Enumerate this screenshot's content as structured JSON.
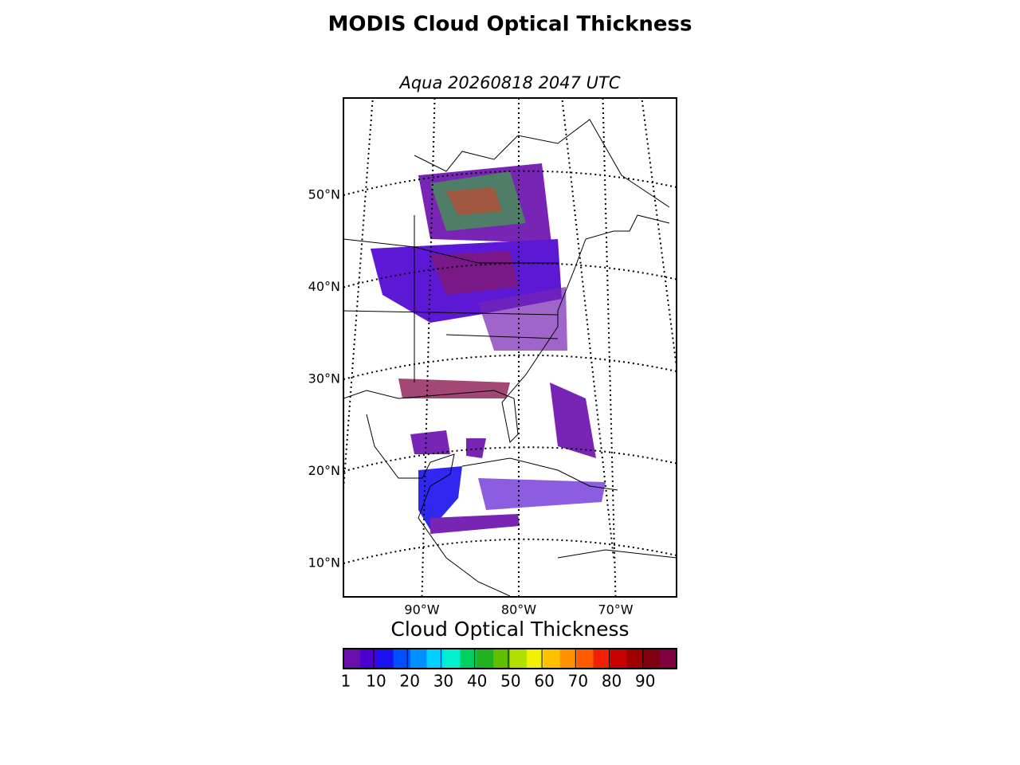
{
  "chart_data": {
    "type": "map",
    "title": "MODIS Cloud Optical Thickness",
    "subtitle": "Aqua 20260818 2047 UTC",
    "yticks": [
      {
        "value": 50,
        "label": "50°N"
      },
      {
        "value": 40,
        "label": "40°N"
      },
      {
        "value": 30,
        "label": "30°N"
      },
      {
        "value": 20,
        "label": "20°N"
      },
      {
        "value": 10,
        "label": "10°N"
      }
    ],
    "xticks": [
      {
        "value": -90,
        "label": "90°W"
      },
      {
        "value": -80,
        "label": "80°W"
      },
      {
        "value": -70,
        "label": "70°W"
      }
    ],
    "colorbar": {
      "label": "Cloud Optical Thickness",
      "lim": [
        1,
        100
      ],
      "ticks": [
        1,
        10,
        20,
        30,
        40,
        50,
        60,
        70,
        80,
        90
      ],
      "colors": [
        "#6a0dad",
        "#4b00d0",
        "#1a10f0",
        "#0050ff",
        "#0090ff",
        "#00d0ff",
        "#00f0d0",
        "#00d060",
        "#20b020",
        "#60c000",
        "#b0e000",
        "#f0f000",
        "#ffc000",
        "#ff9000",
        "#ff5a00",
        "#f02000",
        "#c80000",
        "#a00000",
        "#800010",
        "#800040"
      ]
    }
  }
}
